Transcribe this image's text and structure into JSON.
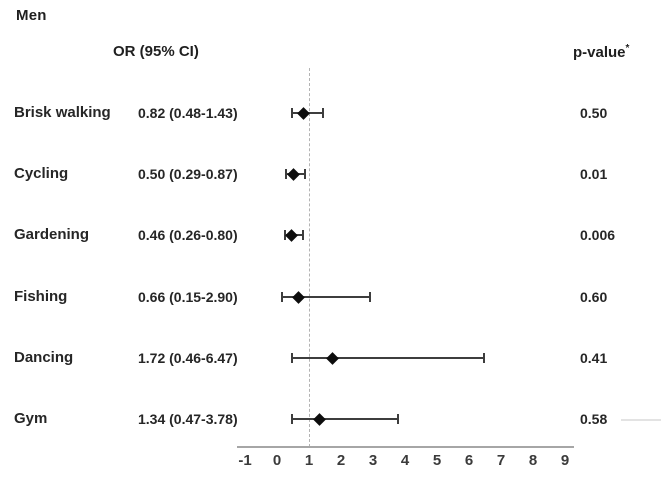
{
  "chart_data": {
    "type": "forest",
    "title": "Men",
    "or_header": "OR (95% CI)",
    "pvalue_header": "p-value",
    "pvalue_header_sup": "*",
    "rows": [
      {
        "label": "Brisk walking",
        "or_text": "0.82 (0.48-1.43)",
        "or": 0.82,
        "ci_low": 0.48,
        "ci_high": 1.43,
        "p_value": "0.50"
      },
      {
        "label": "Cycling",
        "or_text": "0.50 (0.29-0.87)",
        "or": 0.5,
        "ci_low": 0.29,
        "ci_high": 0.87,
        "p_value": "0.01"
      },
      {
        "label": "Gardening",
        "or_text": "0.46 (0.26-0.80)",
        "or": 0.46,
        "ci_low": 0.26,
        "ci_high": 0.8,
        "p_value": "0.006"
      },
      {
        "label": "Fishing",
        "or_text": "0.66 (0.15-2.90)",
        "or": 0.66,
        "ci_low": 0.15,
        "ci_high": 2.9,
        "p_value": "0.60"
      },
      {
        "label": "Dancing",
        "or_text": "1.72 (0.46-6.47)",
        "or": 1.72,
        "ci_low": 0.46,
        "ci_high": 6.47,
        "p_value": "0.41"
      },
      {
        "label": "Gym",
        "or_text": "1.34 (0.47-3.78)",
        "or": 1.34,
        "ci_low": 0.47,
        "ci_high": 3.78,
        "p_value": "0.58"
      }
    ],
    "x_axis": {
      "min": -1,
      "max": 9,
      "ticks": [
        -1,
        0,
        1,
        2,
        3,
        4,
        5,
        6,
        7,
        8,
        9
      ],
      "reference_line": 1,
      "grid": false
    },
    "legend": null,
    "colors": {
      "marker": "#0d0d0d",
      "ci_line": "#3d3d3d",
      "axis_line": "#a6a6a6",
      "reference_line": "#b3b3b3",
      "text": "#262626"
    }
  }
}
